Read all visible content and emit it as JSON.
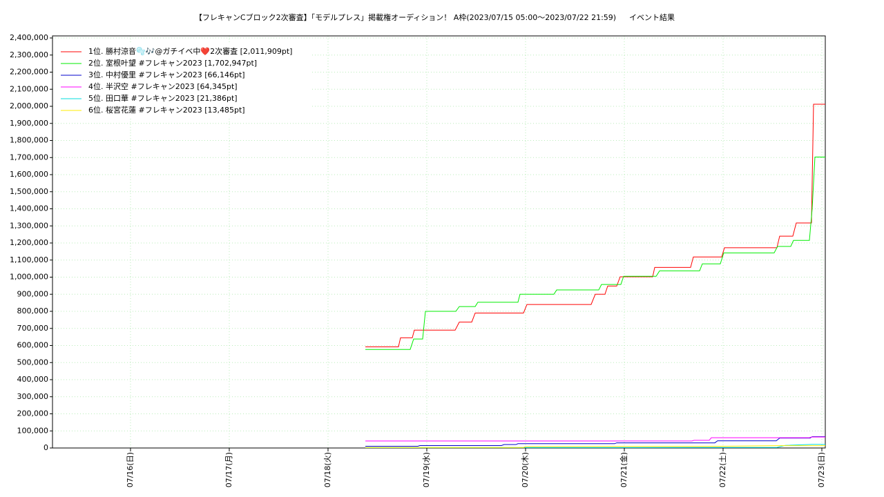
{
  "chart_data": {
    "type": "line",
    "title": "【フレキャンCブロック2次審査】「モデルプレス」掲載権オーディション！ A枠(2023/07/15 05:00〜2023/07/22 21:59)",
    "subtitle": "イベント結果",
    "xlim": [
      15.21,
      23.035
    ],
    "xticks": [
      {
        "value": 16,
        "label": "07/16(日)"
      },
      {
        "value": 17,
        "label": "07/17(月)"
      },
      {
        "value": 18,
        "label": "07/18(火)"
      },
      {
        "value": 19,
        "label": "07/19(水)"
      },
      {
        "value": 20,
        "label": "07/20(木)"
      },
      {
        "value": 21,
        "label": "07/21(金)"
      },
      {
        "value": 22,
        "label": "07/22(土)"
      },
      {
        "value": 23,
        "label": "07/23(日)"
      }
    ],
    "ylim": [
      0,
      2400000
    ],
    "yticks": [
      0,
      {
        "value": 100000,
        "label": "100,000"
      },
      {
        "value": 200000,
        "label": "200,000"
      },
      {
        "value": 300000,
        "label": "300,000"
      },
      {
        "value": 400000,
        "label": "400,000"
      },
      {
        "value": 500000,
        "label": "500,000"
      },
      {
        "value": 600000,
        "label": "600,000"
      },
      {
        "value": 700000,
        "label": "700,000"
      },
      {
        "value": 800000,
        "label": "800,000"
      },
      {
        "value": 900000,
        "label": "900,000"
      },
      {
        "value": 1000000,
        "label": "1,000,000"
      },
      {
        "value": 1100000,
        "label": "1,100,000"
      },
      {
        "value": 1200000,
        "label": "1,200,000"
      },
      {
        "value": 1300000,
        "label": "1,300,000"
      },
      {
        "value": 1400000,
        "label": "1,400,000"
      },
      {
        "value": 1500000,
        "label": "1,500,000"
      },
      {
        "value": 1600000,
        "label": "1,600,000"
      },
      {
        "value": 1700000,
        "label": "1,700,000"
      },
      {
        "value": 1800000,
        "label": "1,800,000"
      },
      {
        "value": 1900000,
        "label": "1,900,000"
      },
      {
        "value": 2000000,
        "label": "2,000,000"
      },
      {
        "value": 2100000,
        "label": "2,100,000"
      },
      {
        "value": 2200000,
        "label": "2,200,000"
      },
      {
        "value": 2300000,
        "label": "2,300,000"
      },
      {
        "value": 2400000,
        "label": "2,400,000"
      }
    ],
    "grid": true,
    "legend": "upper left",
    "series": [
      {
        "name": "1位. 勝村涼音🫧🎶@ガチイベ中❤️2次審査 [2,011,909pt]",
        "color": "#ff0000",
        "x": [
          18.378,
          18.713,
          18.734,
          18.853,
          18.874,
          19.287,
          19.329,
          19.455,
          19.49,
          19.979,
          20.014,
          20.664,
          20.706,
          20.804,
          20.832,
          20.923,
          20.958,
          21.287,
          21.308,
          21.671,
          21.699,
          21.986,
          22.014,
          22.545,
          22.573,
          22.706,
          22.741,
          22.895,
          22.916,
          23.035
        ],
        "values": [
          592000,
          592000,
          645000,
          645000,
          690000,
          690000,
          737000,
          737000,
          790000,
          790000,
          840000,
          840000,
          900000,
          900000,
          948000,
          948000,
          1002000,
          1002000,
          1057000,
          1057000,
          1118000,
          1118000,
          1172000,
          1172000,
          1240000,
          1240000,
          1317000,
          1317000,
          2011909,
          2011909
        ]
      },
      {
        "name": "2位. 室根叶望 #フレキャン2023 [1,702,947pt]",
        "color": "#00ee00",
        "x": [
          18.378,
          18.832,
          18.867,
          18.958,
          18.986,
          19.294,
          19.329,
          19.49,
          19.517,
          19.923,
          19.944,
          20.287,
          20.315,
          20.741,
          20.769,
          20.965,
          20.993,
          21.322,
          21.357,
          21.762,
          21.79,
          21.972,
          22.007,
          22.517,
          22.552,
          22.685,
          22.713,
          22.874,
          22.902,
          22.93,
          23.035
        ],
        "values": [
          577000,
          577000,
          638000,
          638000,
          800000,
          800000,
          828000,
          828000,
          853000,
          853000,
          900000,
          900000,
          925000,
          925000,
          957000,
          957000,
          1005000,
          1005000,
          1037000,
          1037000,
          1078000,
          1078000,
          1142000,
          1142000,
          1180000,
          1180000,
          1215000,
          1215000,
          1400000,
          1702947,
          1702947
        ]
      },
      {
        "name": "3位. 中村優里 #フレキャン2023 [66,146pt]",
        "color": "#0000cc",
        "x": [
          18.378,
          18.909,
          18.93,
          19.755,
          19.783,
          19.902,
          19.923,
          20.902,
          20.923,
          21.916,
          21.944,
          22.538,
          22.573,
          22.881,
          22.902,
          23.035
        ],
        "values": [
          10000,
          10000,
          14000,
          14000,
          20000,
          20000,
          25000,
          25000,
          30000,
          30000,
          42000,
          42000,
          58000,
          58000,
          66146,
          66146
        ]
      },
      {
        "name": "4位. 半沢空 #フレキャン2023 [64,345pt]",
        "color": "#ff00ff",
        "x": [
          18.378,
          21.685,
          21.706,
          21.86,
          21.881,
          22.874,
          22.895,
          23.035
        ],
        "values": [
          41000,
          41000,
          45000,
          45000,
          60000,
          60000,
          64345,
          64345
        ]
      },
      {
        "name": "5位. 田口華 #フレキャン2023 [21,386pt]",
        "color": "#00dddd",
        "x": [
          18.378,
          22.545,
          22.629,
          22.902,
          23.035
        ],
        "values": [
          2000,
          3000,
          15000,
          21386,
          21386
        ]
      },
      {
        "name": "6位. 桜宮花蓮 #フレキャン2023 [13,485pt]",
        "color": "#ffee00",
        "x": [
          18.378,
          19.979,
          20.0,
          22.0,
          22.545,
          23.035
        ],
        "values": [
          3000,
          3000,
          8000,
          10000,
          13485,
          13485
        ]
      }
    ]
  }
}
